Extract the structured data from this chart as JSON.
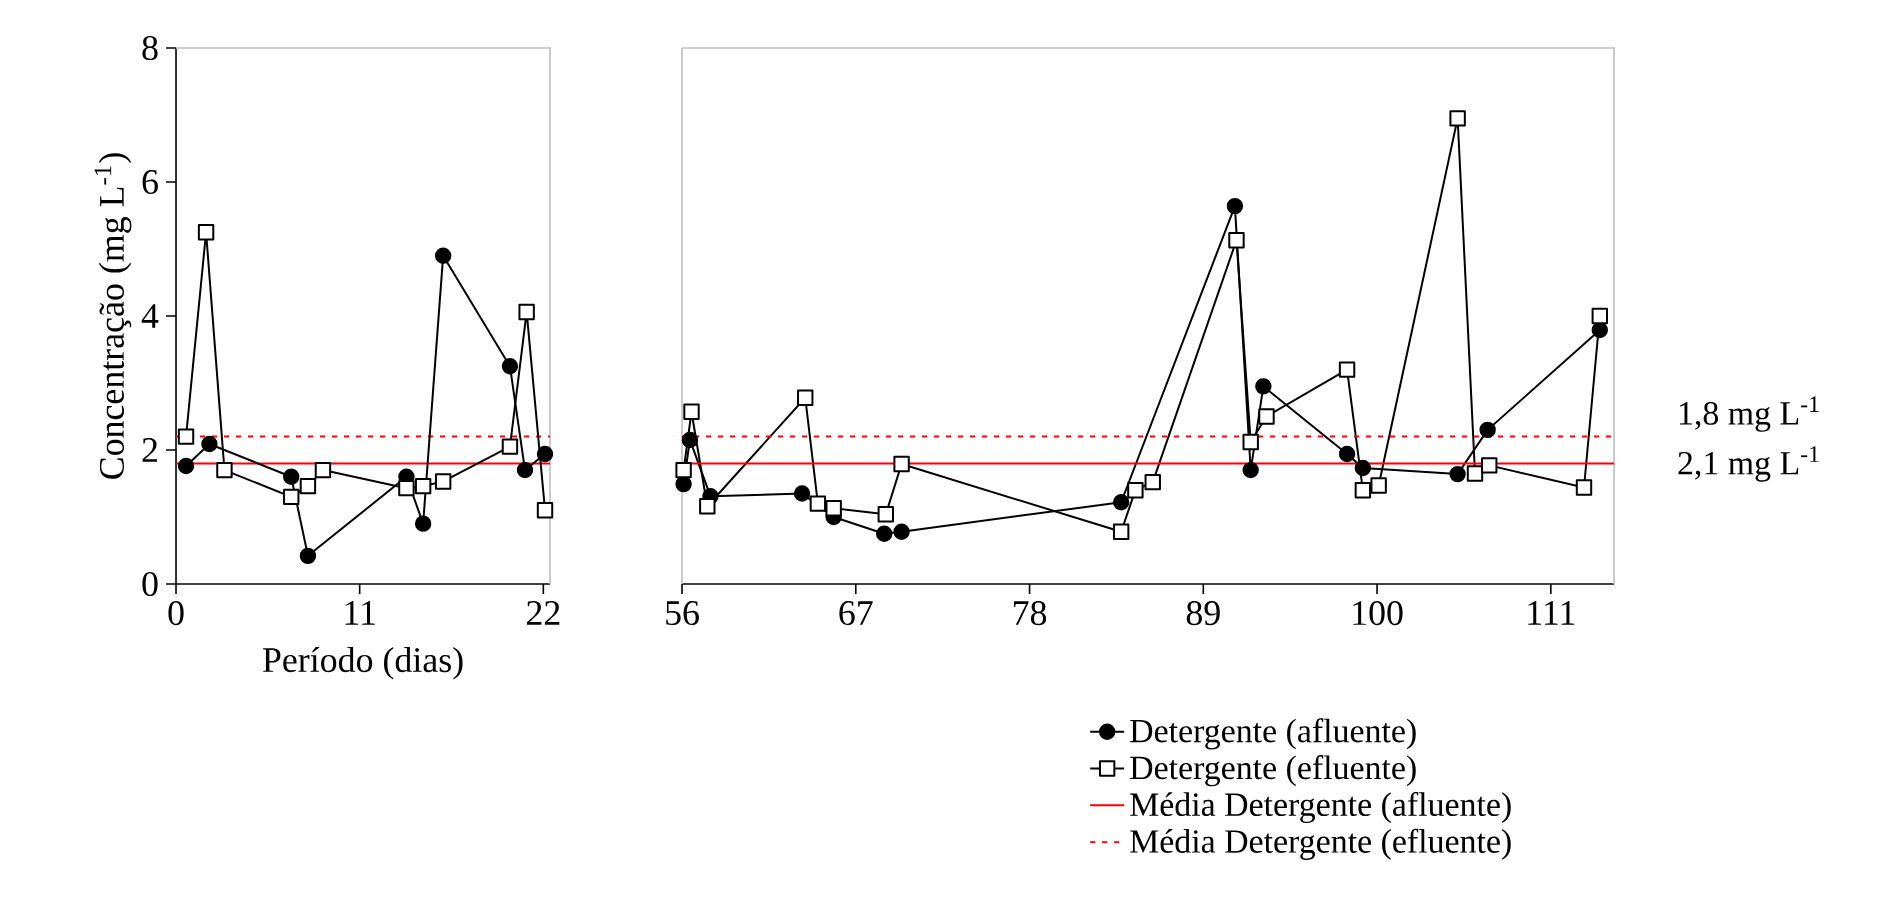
{
  "chart_data": [
    {
      "type": "line",
      "xlabel": "Período (dias)",
      "ylabel": "Concentração (mg L$^{-1}$)",
      "xlim": [
        0,
        22.4
      ],
      "xticks": [
        0,
        11,
        22
      ],
      "ylim": [
        0,
        8
      ],
      "yticks": [
        0,
        2,
        4,
        6,
        8
      ],
      "legend": false,
      "series": [
        {
          "color": "#000000",
          "marker": "circle",
          "line_style": "solid",
          "x": [
            0.6,
            2.0,
            6.9,
            7.9,
            13.8,
            14.8,
            16.0,
            20.0,
            20.9,
            22.1
          ],
          "values": [
            1.76,
            2.09,
            1.6,
            0.42,
            1.6,
            0.9,
            4.9,
            3.25,
            1.7,
            1.94
          ]
        },
        {
          "color": "#000000",
          "marker": "square",
          "line_style": "solid",
          "x": [
            0.6,
            1.8,
            2.9,
            6.9,
            7.9,
            8.8,
            13.8,
            14.8,
            16.0,
            20.0,
            21.0,
            22.1
          ],
          "values": [
            2.2,
            5.25,
            1.7,
            1.3,
            1.46,
            1.7,
            1.43,
            1.46,
            1.53,
            2.05,
            4.06,
            1.1
          ]
        }
      ],
      "ref_lines": [
        {
          "axis": "y",
          "value": 1.8,
          "color": "#ff0000",
          "line_style": "solid"
        },
        {
          "axis": "y",
          "value": 2.2,
          "color": "#ff0000",
          "line_style": "dotted"
        }
      ]
    },
    {
      "type": "line",
      "xlim": [
        56,
        115
      ],
      "xticks": [
        56,
        67,
        78,
        89,
        100,
        111
      ],
      "ylim": [
        0,
        8
      ],
      "yticks": [
        0,
        2,
        4,
        6,
        8
      ],
      "tick_labels": "x",
      "legend": "bottom",
      "series": [
        {
          "name": "Detergente (afluente)",
          "color": "#000000",
          "marker": "circle",
          "line_style": "solid",
          "x": [
            56.1,
            56.5,
            57.8,
            63.6,
            64.6,
            65.6,
            68.8,
            69.9,
            83.8,
            85.8,
            91.0,
            92.0,
            92.8,
            98.1,
            99.1,
            105.1,
            106.2,
            107.0,
            114.1
          ],
          "values": [
            1.49,
            2.15,
            1.31,
            1.35,
            null,
            1.0,
            0.75,
            0.78,
            1.22,
            null,
            5.64,
            1.7,
            2.95,
            1.94,
            1.73,
            1.64,
            null,
            2.3,
            3.79
          ]
        },
        {
          "name": "Detergente (efluente)",
          "color": "#000000",
          "marker": "square",
          "line_style": "solid",
          "x": [
            56.1,
            56.6,
            57.6,
            63.8,
            64.6,
            65.6,
            68.9,
            69.9,
            83.8,
            84.7,
            85.8,
            91.1,
            92.0,
            93.0,
            98.1,
            99.1,
            100.1,
            105.1,
            106.2,
            107.1,
            113.1,
            114.1
          ],
          "values": [
            1.7,
            2.57,
            1.16,
            2.78,
            1.2,
            1.13,
            1.04,
            1.79,
            0.78,
            1.4,
            1.52,
            5.13,
            2.12,
            2.5,
            3.2,
            1.4,
            1.47,
            6.95,
            1.65,
            1.77,
            1.44,
            4.0
          ]
        },
        {
          "name": "Média Detergente (afluente)",
          "color": "#ff0000",
          "line_style": "solid",
          "x": [
            56,
            115
          ],
          "values": [
            1.8,
            1.8
          ]
        },
        {
          "name": "Média Detergente (efluente)",
          "color": "#ff0000",
          "line_style": "dotted",
          "x": [
            56,
            115
          ],
          "values": [
            2.2,
            2.2
          ]
        }
      ],
      "annotations": [
        "1,8 mg L$^{-1}$",
        "2,1 mg L$^{-1}$"
      ]
    }
  ]
}
